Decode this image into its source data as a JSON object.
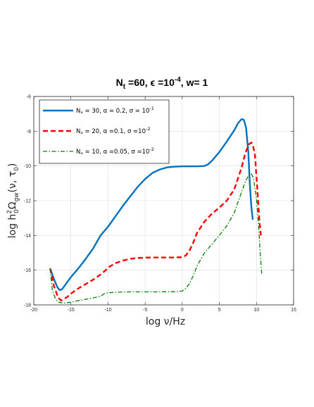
{
  "chart_data": {
    "type": "line",
    "title": {
      "prefix": "N",
      "prefix_sub": "t",
      "middle": " =60, ϵ =10",
      "exp": "-4",
      "suffix": ", w= 1"
    },
    "xlabel": "log ν/Hz",
    "ylabel": {
      "part1": "log h",
      "sup": "2",
      "sub0": "0",
      "omega": "Ω",
      "sub_gw": "gw",
      "args": "(ν, τ",
      "tau_sub": "0",
      "close": ")"
    },
    "xlim": [
      -20,
      15
    ],
    "ylim": [
      -18,
      -6
    ],
    "xticks": [
      "-20",
      "-15",
      "-10",
      "-5",
      "0",
      "5",
      "10",
      "15"
    ],
    "yticks": [
      "-18",
      "-16",
      "-14",
      "-12",
      "-10",
      "-8",
      "-6"
    ],
    "grid": true,
    "legend_position": "top-left",
    "series": [
      {
        "name": "N* = 30, α = 0.2, σ = 10^-1",
        "legend": {
          "n": "N",
          "star": "*",
          "rest": " = 30, α = 0.2, σ = 10",
          "exp": "-1"
        },
        "color": "#0072BD",
        "dash": "solid",
        "x": [
          -17.8,
          -17.3,
          -16.8,
          -16.5,
          -16.2,
          -15.6,
          -15,
          -14,
          -13,
          -12,
          -11,
          -10,
          -9,
          -8,
          -7,
          -6,
          -5,
          -4,
          -3,
          -2,
          -1,
          0,
          1,
          2,
          3,
          3.5,
          4,
          5,
          6,
          7,
          7.5,
          8,
          8.3,
          8.6,
          8.9,
          9.1,
          9.3,
          9.5
        ],
        "y": [
          -15.9,
          -16.5,
          -17.0,
          -17.15,
          -17.1,
          -16.75,
          -16.4,
          -15.9,
          -15.35,
          -14.75,
          -14.0,
          -13.5,
          -12.9,
          -12.3,
          -11.75,
          -11.2,
          -10.75,
          -10.4,
          -10.2,
          -10.08,
          -10.04,
          -10.02,
          -10.02,
          -10.02,
          -10.0,
          -9.9,
          -9.7,
          -9.2,
          -8.6,
          -7.95,
          -7.55,
          -7.3,
          -7.35,
          -7.8,
          -9.2,
          -11.0,
          -12.3,
          -13.1
        ]
      },
      {
        "name": "N* = 20, α =0.1, σ =10^-2",
        "legend": {
          "n": "N",
          "star": "*",
          "rest": " = 20, α =0.1, σ =10",
          "exp": "-2"
        },
        "color": "#FF0000",
        "dash": "dashed",
        "x": [
          -17.8,
          -17.3,
          -16.7,
          -16.3,
          -15.5,
          -15,
          -14,
          -13,
          -12,
          -11,
          -10.3,
          -10,
          -9,
          -8,
          -7,
          -6,
          -5,
          -4,
          -3,
          -2,
          -1,
          0,
          0.5,
          1,
          1.5,
          2,
          3,
          4,
          5,
          6,
          7,
          8,
          8.5,
          9,
          9.3,
          9.5,
          9.8,
          10.1,
          10.4,
          10.6
        ],
        "y": [
          -15.9,
          -16.9,
          -17.6,
          -17.75,
          -17.55,
          -17.35,
          -17.05,
          -16.8,
          -16.55,
          -16.25,
          -16.0,
          -15.85,
          -15.6,
          -15.45,
          -15.35,
          -15.3,
          -15.28,
          -15.27,
          -15.27,
          -15.27,
          -15.27,
          -15.25,
          -15.15,
          -14.85,
          -14.4,
          -13.85,
          -13.2,
          -12.75,
          -12.4,
          -12.0,
          -11.35,
          -10.1,
          -9.25,
          -8.75,
          -8.65,
          -8.75,
          -9.4,
          -11.2,
          -13.2,
          -14.0
        ]
      },
      {
        "name": "N* = 10, α =0.05, σ =10^-2",
        "legend": {
          "n": "N",
          "star": "*",
          "rest": " = 10, α =0.05, σ =10",
          "exp": "-2"
        },
        "color": "#008000",
        "dash": "dashdot",
        "x": [
          -17.8,
          -17.5,
          -17.0,
          -16.6,
          -16.0,
          -15,
          -14,
          -13,
          -12,
          -11,
          -10.5,
          -10,
          -9,
          -8,
          -7,
          -6,
          -5,
          -4,
          -3,
          -2,
          -1,
          0,
          0.5,
          1,
          1.5,
          2,
          3,
          4,
          5,
          6,
          7,
          8,
          8.5,
          9,
          9.3,
          9.6,
          10.0,
          10.3,
          10.5,
          10.7
        ],
        "y": [
          -15.9,
          -17.2,
          -17.7,
          -17.85,
          -17.9,
          -17.85,
          -17.75,
          -17.68,
          -17.6,
          -17.5,
          -17.35,
          -17.3,
          -17.28,
          -17.26,
          -17.25,
          -17.25,
          -17.25,
          -17.25,
          -17.25,
          -17.24,
          -17.24,
          -17.2,
          -17.05,
          -16.75,
          -16.3,
          -15.75,
          -15.0,
          -14.5,
          -14.0,
          -13.45,
          -12.7,
          -11.5,
          -10.9,
          -10.5,
          -10.45,
          -10.7,
          -11.9,
          -13.5,
          -15.0,
          -16.2
        ]
      }
    ]
  }
}
